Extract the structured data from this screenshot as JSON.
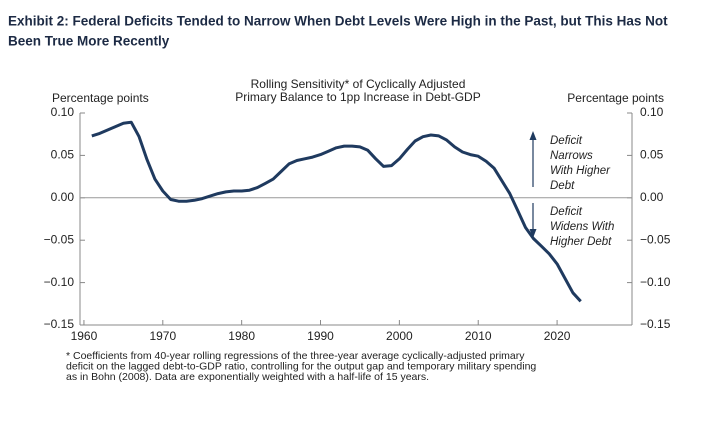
{
  "chart_data": {
    "type": "line",
    "exhibit_title": [
      "Exhibit 2: Federal Deficits Tended to Narrow When Debt Levels Were High in the Past, but This Has Not",
      "Been True More Recently"
    ],
    "title": [
      "Rolling Sensitivity* of Cyclically Adjusted",
      "Primary Balance to 1pp Increase in Debt-GDP"
    ],
    "y_label": "Percentage points",
    "y2_label": "Percentage points",
    "annotations": [
      {
        "lines": [
          "Deficit",
          "Narrows",
          "With Higher",
          "Debt"
        ],
        "direction": "up"
      },
      {
        "lines": [
          "Deficit",
          "Widens With",
          "Higher Debt"
        ],
        "direction": "down"
      }
    ],
    "footnote": [
      "* Coefficients from 40-year rolling regressions of the three-year average cyclically-adjusted primary",
      "deficit on the lagged debt-to-GDP ratio, controlling for the output gap and temporary military spending",
      "as in Bohn (2008). Data are exponentially weighted with a half-life of 15 years."
    ],
    "x": [
      1961,
      1962,
      1963,
      1964,
      1965,
      1966,
      1967,
      1968,
      1969,
      1970,
      1971,
      1972,
      1973,
      1974,
      1975,
      1976,
      1977,
      1978,
      1979,
      1980,
      1981,
      1982,
      1983,
      1984,
      1985,
      1986,
      1987,
      1988,
      1989,
      1990,
      1991,
      1992,
      1993,
      1994,
      1995,
      1996,
      1997,
      1998,
      1999,
      2000,
      2001,
      2002,
      2003,
      2004,
      2005,
      2006,
      2007,
      2008,
      2009,
      2010,
      2011,
      2012,
      2013,
      2014,
      2015,
      2016,
      2017,
      2018,
      2019,
      2020,
      2021,
      2022,
      2023
    ],
    "series": [
      {
        "name": "Rolling sensitivity",
        "color": "#1f3a5f",
        "values": [
          0.073,
          0.076,
          0.08,
          0.084,
          0.088,
          0.089,
          0.072,
          0.045,
          0.022,
          0.008,
          -0.002,
          -0.004,
          -0.004,
          -0.003,
          -0.001,
          0.002,
          0.005,
          0.007,
          0.008,
          0.008,
          0.009,
          0.012,
          0.017,
          0.022,
          0.031,
          0.04,
          0.044,
          0.046,
          0.048,
          0.051,
          0.055,
          0.059,
          0.061,
          0.061,
          0.06,
          0.056,
          0.046,
          0.037,
          0.038,
          0.046,
          0.057,
          0.067,
          0.072,
          0.074,
          0.073,
          0.068,
          0.06,
          0.054,
          0.051,
          0.049,
          0.043,
          0.035,
          0.02,
          0.005,
          -0.015,
          -0.035,
          -0.048,
          -0.057,
          -0.066,
          -0.078,
          -0.095,
          -0.112,
          -0.122
        ]
      }
    ],
    "xlim": [
      1959.5,
      2029.5
    ],
    "xticks": [
      1960,
      1970,
      1980,
      1990,
      2000,
      2010,
      2020
    ],
    "ylim": [
      -0.15,
      0.1
    ],
    "yticks": [
      {
        "value": -0.15,
        "label": "−0.15"
      },
      {
        "value": -0.1,
        "label": "−0.10"
      },
      {
        "value": -0.05,
        "label": "−0.05"
      },
      {
        "value": 0,
        "label": "0.00"
      },
      {
        "value": 0.05,
        "label": "0.05"
      },
      {
        "value": 0.1,
        "label": "0.10"
      }
    ],
    "zero_line": true
  }
}
